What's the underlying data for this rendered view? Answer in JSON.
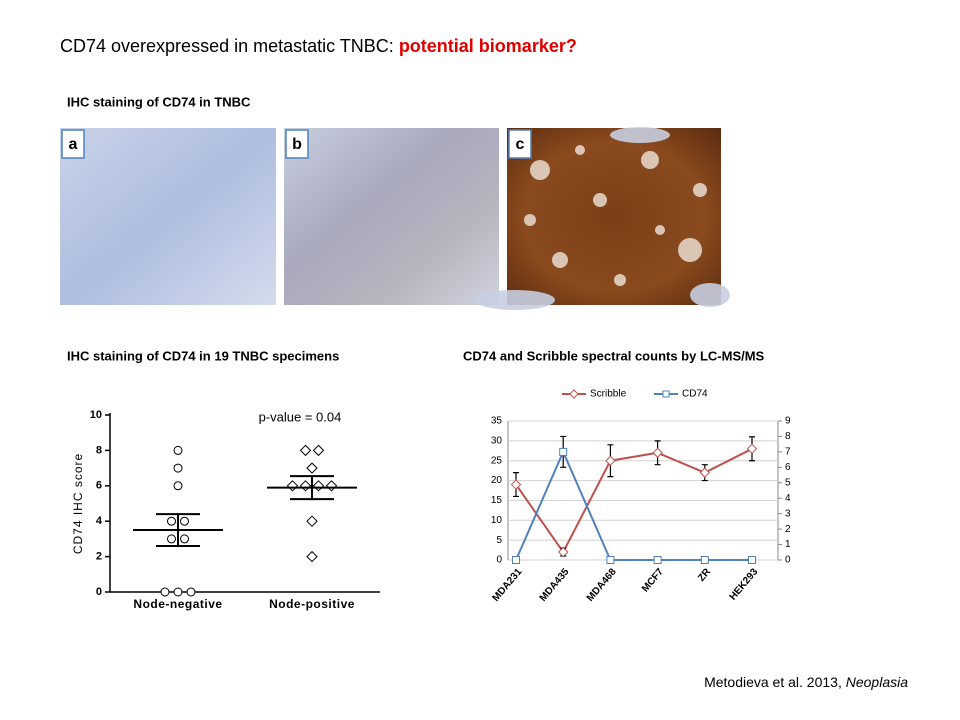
{
  "title": {
    "text": "CD74 overexpressed in metastatic TNBC: ",
    "highlight": "potential biomarker?"
  },
  "ihc_heading": "IHC staining of CD74 in TNBC",
  "panels": [
    "a",
    "b",
    "c"
  ],
  "citation": {
    "text": "Metodieva et al. 2013, ",
    "journal": "Neoplasia"
  },
  "chart_data": [
    {
      "type": "dotplot",
      "title": "IHC staining of CD74 in 19 TNBC specimens",
      "y_label": "CD74 IHC score",
      "annotation": "p-value = 0.04",
      "categories": [
        "Node-negative",
        "Node-positive"
      ],
      "groups": [
        {
          "marker": "circle",
          "values": [
            8,
            7,
            6,
            4,
            4,
            3,
            3,
            0,
            0,
            0
          ]
        },
        {
          "marker": "diamond",
          "values": [
            8,
            8,
            7,
            6,
            6,
            6,
            6,
            4,
            2
          ]
        }
      ],
      "means": [
        3.5,
        5.9
      ],
      "sem": [
        0.9,
        0.65
      ],
      "ylim": [
        0,
        10
      ],
      "yticks": [
        0,
        2,
        4,
        6,
        8,
        10
      ]
    },
    {
      "type": "line",
      "title": "CD74 and Scribble spectral counts by LC-MS/MS",
      "categories": [
        "MDA231",
        "MDA435",
        "MDA468",
        "MCF7",
        "ZR",
        "HEK293"
      ],
      "series": [
        {
          "name": "Scribble",
          "color": "#c0504d",
          "marker": "diamond",
          "values": [
            19,
            2,
            25,
            27,
            22,
            28
          ],
          "errors": [
            3,
            1,
            4,
            3,
            2,
            3
          ]
        },
        {
          "name": "CD74",
          "color": "#4f81bd",
          "marker": "square",
          "axis": "y2",
          "values": [
            0,
            7,
            0,
            0,
            0,
            0
          ],
          "errors": [
            null,
            1,
            null,
            null,
            null,
            null
          ]
        }
      ],
      "ylim": [
        0,
        35
      ],
      "yticks": [
        0,
        5,
        10,
        15,
        20,
        25,
        30,
        35
      ],
      "y2lim": [
        0,
        9
      ],
      "y2ticks": [
        0,
        1,
        2,
        3,
        4,
        5,
        6,
        7,
        8,
        9
      ],
      "legend": "top"
    }
  ]
}
